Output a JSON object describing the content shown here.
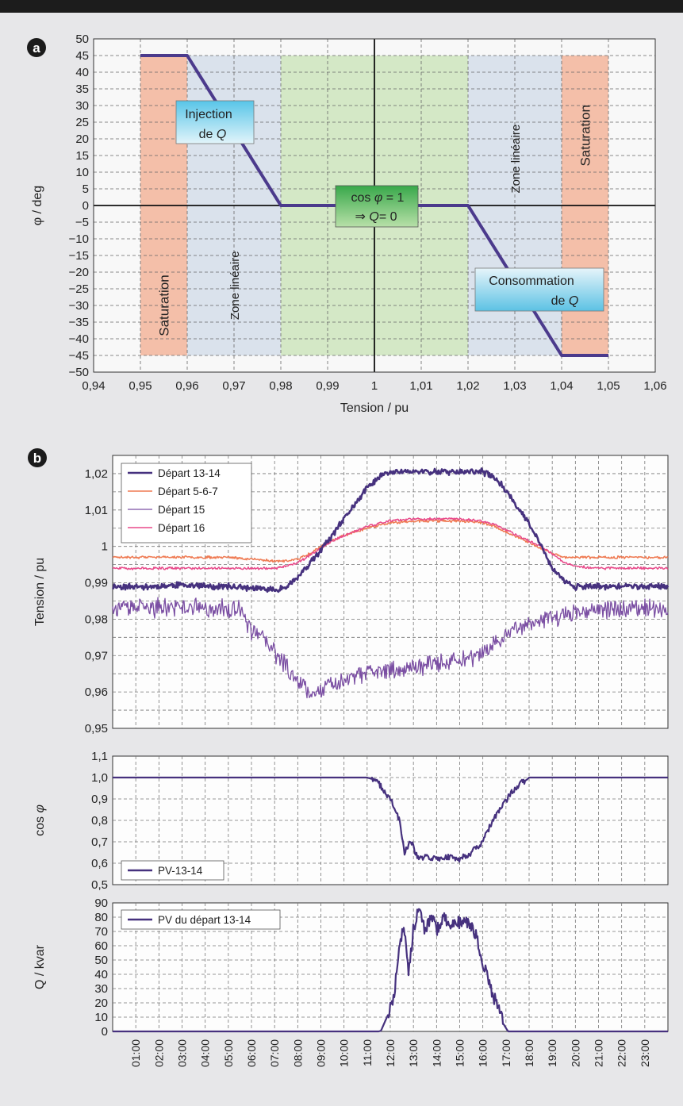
{
  "panels": {
    "a": {
      "badge": "a",
      "chart_data": {
        "type": "line",
        "xlabel": "Tension / pu",
        "ylabel": "φ / deg",
        "xlim": [
          0.94,
          1.06
        ],
        "ylim": [
          -50,
          50
        ],
        "x_ticks": [
          0.94,
          0.95,
          0.96,
          0.97,
          0.98,
          0.99,
          1.0,
          1.01,
          1.02,
          1.03,
          1.04,
          1.05,
          1.06
        ],
        "x_tick_labels": [
          "0,94",
          "0,95",
          "0,96",
          "0,97",
          "0,98",
          "0,99",
          "1",
          "1,01",
          "1,02",
          "1,03",
          "1,04",
          "1,05",
          "1,06"
        ],
        "y_ticks": [
          50,
          45,
          40,
          35,
          30,
          25,
          20,
          15,
          10,
          5,
          0,
          -5,
          -10,
          -15,
          -20,
          -25,
          -30,
          -35,
          -40,
          -45,
          -50
        ],
        "y_tick_labels": [
          "50",
          "45",
          "40",
          "35",
          "30",
          "25",
          "20",
          "15",
          "10",
          "5",
          "0",
          "−5",
          "−10",
          "−15",
          "−20",
          "−25",
          "−30",
          "−35",
          "−40",
          "−45",
          "−50"
        ],
        "grid": true,
        "series": [
          {
            "x": [
              0.95,
              0.96,
              0.98,
              1.02,
              1.04,
              1.05
            ],
            "y": [
              45,
              45,
              0,
              0,
              -45,
              -45
            ],
            "color": "#4b3a8c"
          }
        ],
        "zones": [
          {
            "x0": 0.95,
            "x1": 0.96,
            "y0": -45,
            "y1": 45,
            "color": "#f3b8a0",
            "label": "Saturation",
            "label_y": -30
          },
          {
            "x0": 0.96,
            "x1": 0.98,
            "y0": -45,
            "y1": 45,
            "color": "#d6dfea",
            "label": "Zone linéaire",
            "label_y": -24
          },
          {
            "x0": 0.98,
            "x1": 1.02,
            "y0": -45,
            "y1": 45,
            "color": "#cfe6c0",
            "label": "",
            "label_y": 0
          },
          {
            "x0": 1.02,
            "x1": 1.04,
            "y0": -45,
            "y1": 45,
            "color": "#d6dfea",
            "label": "Zone linéaire",
            "label_y": 14
          },
          {
            "x0": 1.04,
            "x1": 1.05,
            "y0": -45,
            "y1": 45,
            "color": "#f3b8a0",
            "label": "Saturation",
            "label_y": 21
          }
        ],
        "annotations": {
          "injection": {
            "line1": "Injection",
            "line2_prefix": "de ",
            "line2_var": "Q"
          },
          "cosphi": {
            "line1_prefix": "cos ",
            "line1_var": "φ",
            "line1_suffix": " = 1",
            "line2_arrow": "⇒ ",
            "line2_var": "Q",
            "line2_suffix": "= 0"
          },
          "consommation": {
            "line1": "Consommation",
            "line2_prefix": "de ",
            "line2_var": "Q"
          }
        }
      }
    },
    "b": {
      "badge": "b",
      "time_labels": [
        "01:00",
        "02:00",
        "03:00",
        "04:00",
        "05:00",
        "06:00",
        "07:00",
        "08:00",
        "09:00",
        "10:00",
        "11:00",
        "12:00",
        "13:00",
        "14:00",
        "15:00",
        "16:00",
        "17:00",
        "18:00",
        "19:00",
        "20:00",
        "21:00",
        "22:00",
        "23:00"
      ],
      "chart_data": [
        {
          "type": "line",
          "ylabel": "Tension / pu",
          "ylim": [
            0.95,
            1.025
          ],
          "xlim": [
            0,
            24
          ],
          "y_ticks": [
            1.02,
            1.01,
            1.0,
            0.99,
            0.98,
            0.97,
            0.96,
            0.95
          ],
          "y_tick_labels": [
            "1,02",
            "1,01",
            "1",
            "0,99",
            "0,98",
            "0,97",
            "0,96",
            "0,95"
          ],
          "legend_position": "top-left",
          "grid": true,
          "series": [
            {
              "name": "Départ 13-14",
              "color": "#46317e",
              "width": 2.6,
              "noise": 0.0007,
              "seed": 11,
              "x": [
                0,
                1,
                2,
                3,
                4,
                5,
                6,
                7,
                7.5,
                8,
                8.5,
                9,
                9.5,
                10,
                10.5,
                11,
                11.5,
                12,
                13,
                14,
                15,
                16,
                16.5,
                17,
                17.5,
                18,
                18.5,
                19,
                19.5,
                20,
                21,
                22,
                23,
                24
              ],
              "y": [
                0.989,
                0.989,
                0.989,
                0.9895,
                0.989,
                0.989,
                0.9885,
                0.988,
                0.989,
                0.9915,
                0.995,
                0.999,
                1.003,
                1.0075,
                1.012,
                1.016,
                1.019,
                1.0205,
                1.0205,
                1.0205,
                1.0205,
                1.0205,
                1.019,
                1.0155,
                1.011,
                1.006,
                1.0005,
                0.994,
                0.9905,
                0.989,
                0.989,
                0.989,
                0.989,
                0.989
              ]
            },
            {
              "name": "Départ 5-6-7",
              "color": "#ef7a52",
              "width": 1.5,
              "noise": 0.0003,
              "seed": 23,
              "x": [
                0,
                1,
                2,
                3,
                4,
                5,
                6,
                7,
                7.5,
                8,
                8.5,
                9,
                9.5,
                10,
                11,
                12,
                13,
                14,
                15,
                16,
                16.5,
                17,
                17.5,
                18,
                18.5,
                19,
                19.5,
                20,
                21,
                22,
                23,
                24
              ],
              "y": [
                0.997,
                0.997,
                0.997,
                0.997,
                0.997,
                0.997,
                0.9965,
                0.996,
                0.996,
                0.9965,
                0.998,
                1.0,
                1.0015,
                1.003,
                1.005,
                1.0065,
                1.007,
                1.007,
                1.007,
                1.0065,
                1.0055,
                1.004,
                1.0025,
                1.001,
                0.9995,
                0.998,
                0.997,
                0.997,
                0.997,
                0.997,
                0.997,
                0.997
              ]
            },
            {
              "name": "Départ 15",
              "color": "#7b4fa3",
              "width": 1.3,
              "noise": 0.0022,
              "seed": 37,
              "x": [
                0,
                1,
                2,
                3,
                4,
                5,
                5.5,
                6,
                6.5,
                7,
                7.5,
                8,
                8.5,
                9,
                9.5,
                10,
                10.5,
                11,
                11.5,
                12,
                12.5,
                13,
                13.5,
                14,
                14.5,
                15,
                15.5,
                16,
                16.5,
                17,
                17.5,
                18,
                18.5,
                19,
                19.5,
                20,
                21,
                22,
                23,
                24
              ],
              "y": [
                0.983,
                0.983,
                0.983,
                0.9835,
                0.983,
                0.983,
                0.9825,
                0.977,
                0.9745,
                0.971,
                0.967,
                0.963,
                0.96,
                0.9605,
                0.962,
                0.963,
                0.964,
                0.965,
                0.9655,
                0.966,
                0.9665,
                0.967,
                0.9675,
                0.968,
                0.968,
                0.9685,
                0.969,
                0.97,
                0.973,
                0.976,
                0.978,
                0.979,
                0.98,
                0.9805,
                0.981,
                0.9825,
                0.983,
                0.983,
                0.983,
                0.983
              ]
            },
            {
              "name": "Départ 16",
              "color": "#e84a8a",
              "width": 1.5,
              "noise": 0.0003,
              "seed": 51,
              "x": [
                0,
                1,
                2,
                3,
                4,
                5,
                6,
                7,
                7.5,
                8,
                8.5,
                9,
                9.5,
                10,
                11,
                12,
                13,
                14,
                15,
                16,
                16.5,
                17,
                17.5,
                18,
                18.5,
                19,
                19.5,
                20,
                21,
                22,
                23,
                24
              ],
              "y": [
                0.994,
                0.994,
                0.994,
                0.994,
                0.994,
                0.994,
                0.994,
                0.994,
                0.9945,
                0.9955,
                0.9975,
                0.9995,
                1.0015,
                1.003,
                1.0055,
                1.007,
                1.0075,
                1.0075,
                1.0075,
                1.007,
                1.006,
                1.0045,
                1.003,
                1.0015,
                1.0,
                0.998,
                0.9955,
                0.9945,
                0.994,
                0.994,
                0.994,
                0.994
              ]
            }
          ]
        },
        {
          "type": "line",
          "ylabel_prefix": "cos ",
          "ylabel_var": "φ",
          "ylim": [
            0.5,
            1.1
          ],
          "xlim": [
            0,
            24
          ],
          "y_ticks": [
            1.1,
            1.0,
            0.9,
            0.8,
            0.7,
            0.6,
            0.5
          ],
          "y_tick_labels": [
            "1,1",
            "1,0",
            "0,9",
            "0,8",
            "0,7",
            "0,6",
            "0,5"
          ],
          "legend_position": "bottom-left",
          "grid": true,
          "series": [
            {
              "name": "PV-13-14",
              "color": "#46317e",
              "width": 2.2,
              "noise": 0.014,
              "seed": 71,
              "x": [
                0,
                10.9,
                11.0,
                11.3,
                11.6,
                12.0,
                12.4,
                12.6,
                12.9,
                13.2,
                13.6,
                14,
                14.5,
                15,
                15.5,
                16,
                16.3,
                16.6,
                17,
                17.3,
                17.6,
                17.9,
                18.0,
                24
              ],
              "y": [
                1.0,
                1.0,
                1.0,
                0.99,
                0.96,
                0.9,
                0.8,
                0.65,
                0.7,
                0.62,
                0.63,
                0.62,
                0.63,
                0.62,
                0.65,
                0.7,
                0.77,
                0.83,
                0.89,
                0.94,
                0.97,
                0.99,
                1.0,
                1.0
              ],
              "noise_range": [
                11.2,
                17.8
              ]
            }
          ]
        },
        {
          "type": "line",
          "ylabel": "Q / kvar",
          "ylim": [
            0,
            90
          ],
          "xlim": [
            0,
            24
          ],
          "y_ticks": [
            90,
            80,
            70,
            60,
            50,
            40,
            30,
            20,
            10,
            0
          ],
          "y_tick_labels": [
            "90",
            "80",
            "70",
            "60",
            "50",
            "40",
            "30",
            "20",
            "10",
            "0"
          ],
          "legend_position": "top-left",
          "grid": true,
          "series": [
            {
              "name": "PV du départ 13-14",
              "color": "#46317e",
              "width": 2.2,
              "noise": 5,
              "seed": 93,
              "x": [
                0,
                11.5,
                11.6,
                11.8,
                12.0,
                12.2,
                12.4,
                12.6,
                12.8,
                13.0,
                13.2,
                13.5,
                13.8,
                14,
                14.3,
                14.6,
                15,
                15.3,
                15.6,
                15.9,
                16.1,
                16.4,
                16.7,
                16.9,
                17.05,
                17.1,
                24
              ],
              "y": [
                0,
                0,
                0.5,
                8,
                15,
                30,
                65,
                72,
                42,
                72,
                84,
                72,
                80,
                70,
                82,
                75,
                76,
                78,
                72,
                55,
                42,
                28,
                15,
                5,
                1,
                0,
                0
              ],
              "noise_range": [
                11.9,
                16.9
              ]
            }
          ]
        }
      ]
    }
  }
}
